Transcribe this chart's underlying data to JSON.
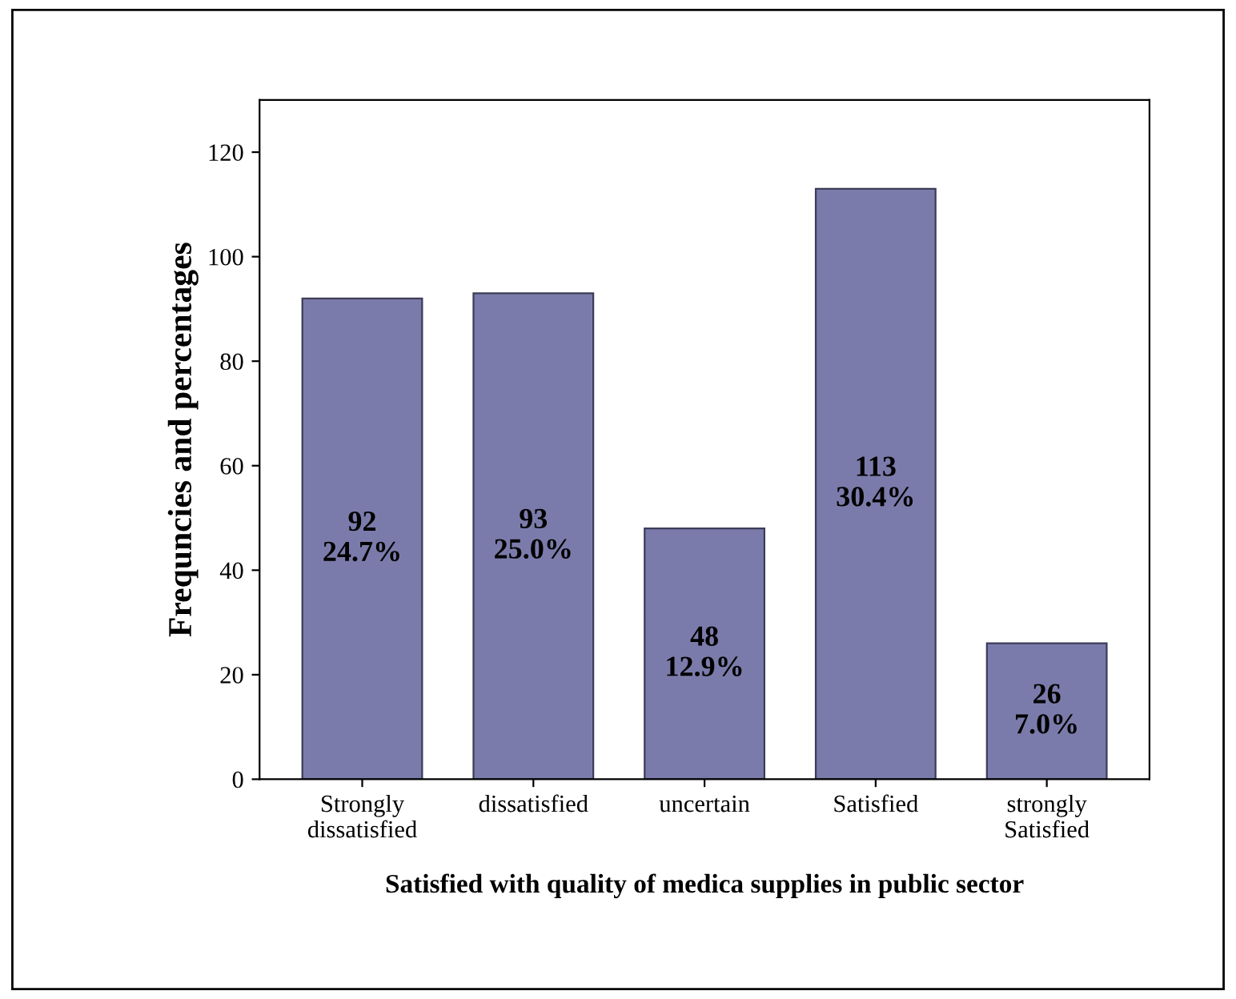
{
  "chart_data": {
    "type": "bar",
    "xlabel": "Satisfied with quality of medica supplies in public sector",
    "ylabel": "Frequncies and percentages",
    "categories": [
      "Strongly\ndissatisfied",
      "dissatisfied",
      "uncertain",
      "Satisfied",
      "strongly\nSatisfied"
    ],
    "values": [
      92,
      93,
      48,
      113,
      26
    ],
    "value_labels": [
      "92\n24.7%",
      "93\n25.0%",
      "48\n12.9%",
      "113\n30.4%",
      "26\n7.0%"
    ],
    "color": "#7b7bab",
    "ylim": [
      0,
      130
    ],
    "yticks": [
      0,
      20,
      40,
      60,
      80,
      100,
      120
    ],
    "grid": false
  }
}
